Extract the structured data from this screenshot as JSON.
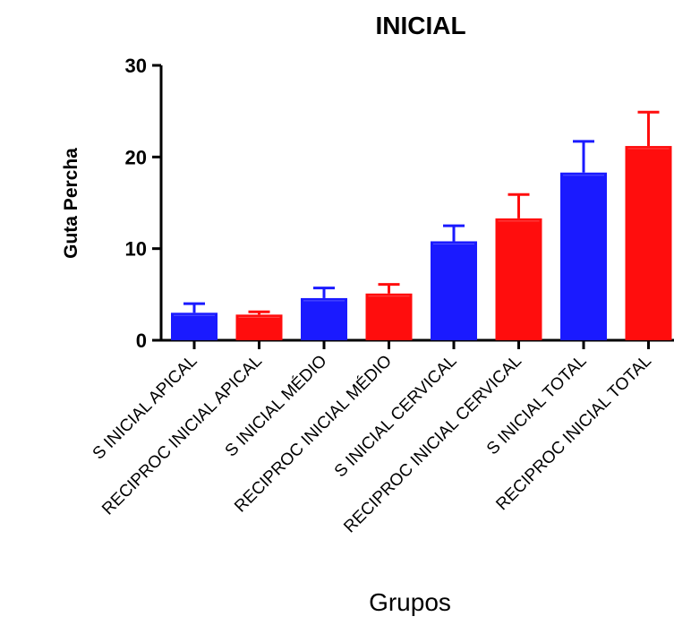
{
  "chart_data": {
    "type": "bar",
    "title": "INICIAL",
    "xlabel": "Grupos",
    "ylabel": "Guta Percha",
    "ylim": [
      0,
      30
    ],
    "yticks": [
      "0",
      "10",
      "20",
      "30"
    ],
    "ytick_values": [
      0,
      10,
      20,
      30
    ],
    "categories": [
      "S INICIAL APICAL",
      "RECIPROC INICIAL APICAL",
      "S INICIAL MÉDIO",
      "RECIPROC INICIAL MÉDIO",
      "S INICIAL CERVICAL",
      "RECIPROC INICIAL CERVICAL",
      "S INICIAL TOTAL",
      "RECIPROC INICIAL TOTAL"
    ],
    "values": [
      3.0,
      2.8,
      4.6,
      5.1,
      10.8,
      13.3,
      18.3,
      21.2
    ],
    "error_upper": [
      1.0,
      0.3,
      1.1,
      1.0,
      1.7,
      2.6,
      3.4,
      3.7
    ],
    "bar_colors": [
      "#1a1aff",
      "#ff0d0d",
      "#1a1aff",
      "#ff0d0d",
      "#1a1aff",
      "#ff0d0d",
      "#1a1aff",
      "#ff0d0d"
    ],
    "grid": false,
    "legend": "none"
  }
}
